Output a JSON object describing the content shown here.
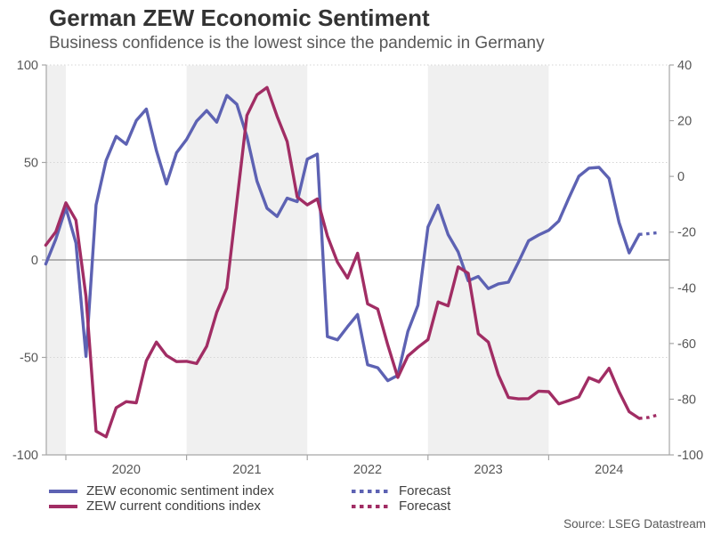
{
  "header": {
    "title": "German ZEW Economic Sentiment",
    "subtitle": "Business confidence is the lowest since the pandemic in Germany"
  },
  "source": "Source: LSEG Datastream",
  "legend": {
    "forecast_label": "Forecast"
  },
  "colors": {
    "sentiment": "#5d62b3",
    "conditions": "#a12d64",
    "band": "#f0f0f0",
    "axis": "#a6a6a6",
    "zero_line": "#8a8a8a",
    "grid_dotted": "#d6d6d6",
    "tick_text": "#575757"
  },
  "chart_data": {
    "type": "line",
    "title": "German ZEW Economic Sentiment",
    "xlabel": "",
    "ylabel_left": "",
    "ylabel_right": "",
    "x_tick_labels": [
      "2020",
      "2021",
      "2022",
      "2023",
      "2024"
    ],
    "months": [
      "2019-11",
      "2019-12",
      "2020-01",
      "2020-02",
      "2020-03",
      "2020-04",
      "2020-05",
      "2020-06",
      "2020-07",
      "2020-08",
      "2020-09",
      "2020-10",
      "2020-11",
      "2020-12",
      "2021-01",
      "2021-02",
      "2021-03",
      "2021-04",
      "2021-05",
      "2021-06",
      "2021-07",
      "2021-08",
      "2021-09",
      "2021-10",
      "2021-11",
      "2021-12",
      "2022-01",
      "2022-02",
      "2022-03",
      "2022-04",
      "2022-05",
      "2022-06",
      "2022-07",
      "2022-08",
      "2022-09",
      "2022-10",
      "2022-11",
      "2022-12",
      "2023-01",
      "2023-02",
      "2023-03",
      "2023-04",
      "2023-05",
      "2023-06",
      "2023-07",
      "2023-08",
      "2023-09",
      "2023-10",
      "2023-11",
      "2023-12",
      "2024-01",
      "2024-02",
      "2024-03",
      "2024-04",
      "2024-05",
      "2024-06",
      "2024-07",
      "2024-08",
      "2024-09",
      "2024-10"
    ],
    "series": [
      {
        "name": "ZEW economic sentiment index",
        "axis": "left",
        "color_key": "sentiment",
        "values": [
          -2.1,
          10.7,
          26.7,
          8.7,
          -49.5,
          28.2,
          51.0,
          63.4,
          59.3,
          71.5,
          77.4,
          56.1,
          39.0,
          55.0,
          61.8,
          71.2,
          76.6,
          70.7,
          84.4,
          79.8,
          63.3,
          40.4,
          26.5,
          22.3,
          31.7,
          29.9,
          51.7,
          54.3,
          -39.3,
          -41.0,
          -34.3,
          -28.0,
          -53.8,
          -55.3,
          -61.9,
          -59.2,
          -36.7,
          -23.3,
          16.9,
          28.1,
          13.0,
          4.1,
          -10.7,
          -8.5,
          -14.7,
          -12.3,
          -11.4,
          -1.1,
          9.8,
          12.8,
          15.2,
          19.9,
          31.7,
          42.9,
          47.1,
          47.5,
          41.8,
          19.2,
          3.6,
          13.1
        ]
      },
      {
        "name": "ZEW current conditions index",
        "axis": "right",
        "color_key": "conditions",
        "values": [
          -24.7,
          -19.9,
          -9.5,
          -15.7,
          -43.1,
          -91.5,
          -93.5,
          -83.1,
          -80.9,
          -81.3,
          -66.2,
          -59.5,
          -64.3,
          -66.5,
          -66.4,
          -67.2,
          -61.0,
          -48.8,
          -40.1,
          -9.1,
          21.9,
          29.3,
          31.9,
          21.6,
          12.5,
          -7.4,
          -10.2,
          -8.1,
          -21.4,
          -30.8,
          -36.5,
          -27.6,
          -45.8,
          -47.6,
          -60.5,
          -72.2,
          -64.5,
          -61.4,
          -58.6,
          -45.1,
          -46.5,
          -32.5,
          -34.8,
          -56.5,
          -59.5,
          -71.3,
          -79.4,
          -79.9,
          -79.8,
          -77.1,
          -77.3,
          -81.7,
          -80.5,
          -79.2,
          -72.3,
          -73.8,
          -68.9,
          -77.3,
          -84.5,
          -86.9
        ]
      }
    ],
    "forecast_months": [
      "2024-11",
      "2024-12"
    ],
    "forecast": [
      {
        "series_index": 0,
        "values": [
          13.5,
          14.0
        ]
      },
      {
        "series_index": 1,
        "values": [
          -86.5,
          -85.5
        ]
      }
    ],
    "left_axis": {
      "range": [
        -100,
        100
      ],
      "ticks": [
        100,
        50,
        0,
        -50,
        -100
      ]
    },
    "right_axis": {
      "range": [
        -100,
        40
      ],
      "ticks": [
        40,
        20,
        0,
        -20,
        -40,
        -60,
        -80,
        -100
      ]
    },
    "gridlines_left_values": [
      100,
      50,
      -50
    ],
    "zero_line_left_value": 0,
    "shaded_year_bands": [
      2019,
      2021,
      2023
    ],
    "grid": "dotted-horizontal",
    "legend_position": "bottom"
  }
}
